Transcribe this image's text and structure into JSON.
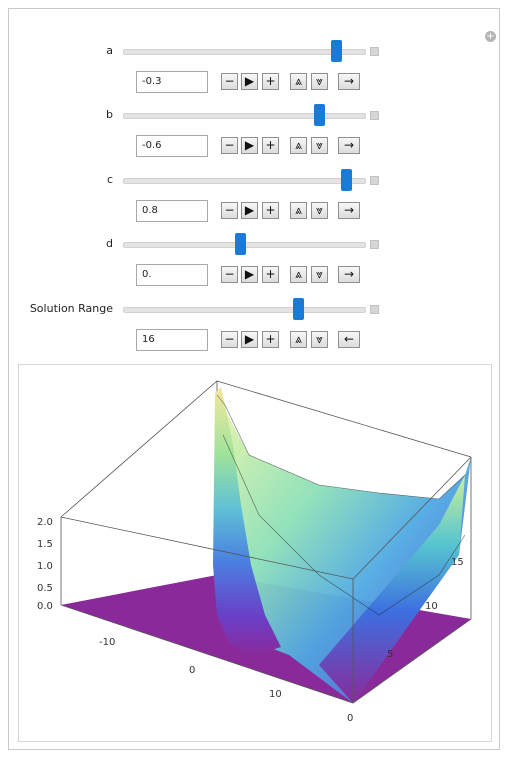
{
  "controls": [
    {
      "label": "a",
      "value": "-0.3",
      "slider_fraction": 0.88,
      "animator": "→"
    },
    {
      "label": "b",
      "value": "-0.6",
      "slider_fraction": 0.81,
      "animator": "→"
    },
    {
      "label": "c",
      "value": "0.8",
      "slider_fraction": 0.92,
      "animator": "→"
    },
    {
      "label": "d",
      "value": "0.",
      "slider_fraction": 0.48,
      "animator": "→"
    },
    {
      "label": "Solution Range",
      "value": "16",
      "slider_fraction": 0.72,
      "animator": "←"
    }
  ],
  "buttons": {
    "minus": "−",
    "play": "▶",
    "plus": "+",
    "faster": "⩓",
    "slower": "⩔"
  },
  "plot": {
    "z_ticks": [
      "2.0",
      "1.5",
      "1.0",
      "0.5",
      "0.0"
    ],
    "x_ticks": [
      "-10",
      "0",
      "10"
    ],
    "y_ticks": [
      "15",
      "10",
      "5",
      "0"
    ]
  },
  "colors": {
    "accent": "#1a7bd6",
    "surface_low": "#8a2a9a",
    "surface_high": "#e8f0a0"
  }
}
